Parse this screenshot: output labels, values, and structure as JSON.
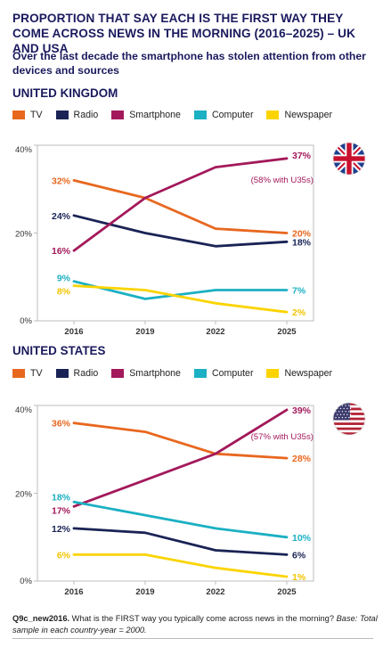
{
  "title": "PROPORTION THAT SAY EACH IS THE FIRST WAY THEY COME ACROSS NEWS IN THE MORNING (2016–2025) – UK AND USA",
  "subtitle": "Over the last decade the smartphone has stolen attention from other devices and sources",
  "colors": {
    "TV": "#e8671f",
    "Radio": "#1a2355",
    "Smartphone": "#a3195b",
    "Computer": "#1bb0c3",
    "Newspaper": "#fbd400"
  },
  "legend": [
    {
      "name": "TV",
      "color": "#e8671f"
    },
    {
      "name": "Radio",
      "color": "#1a2355"
    },
    {
      "name": "Smartphone",
      "color": "#a3195b"
    },
    {
      "name": "Computer",
      "color": "#1bb0c3"
    },
    {
      "name": "Newspaper",
      "color": "#fbd400"
    }
  ],
  "footnote": {
    "code": "Q9c_new2016.",
    "question": " What is the FIRST way you typically come across news in the morning? ",
    "base": "Base: Total sample in each country-year = 2000."
  },
  "chart_data": [
    {
      "type": "line",
      "region": "UNITED KINGDOM",
      "flag": "uk-flag-icon",
      "x": [
        "2016",
        "2019",
        "2022",
        "2025"
      ],
      "ylim": [
        0,
        40
      ],
      "yticks": [
        "0%",
        "20%",
        "40%"
      ],
      "grid": false,
      "legend_position": "top",
      "annotation": "(58% with U35s)",
      "series": [
        {
          "name": "TV",
          "values": [
            32,
            28,
            21,
            20
          ],
          "start_label": "32%",
          "end_label": "20%"
        },
        {
          "name": "Radio",
          "values": [
            24,
            20,
            17,
            18
          ],
          "start_label": "24%",
          "end_label": "18%"
        },
        {
          "name": "Smartphone",
          "values": [
            16,
            28,
            35,
            37
          ],
          "start_label": "16%",
          "end_label": "37%"
        },
        {
          "name": "Computer",
          "values": [
            9,
            5,
            7,
            7
          ],
          "start_label": "9%",
          "end_label": "7%"
        },
        {
          "name": "Newspaper",
          "values": [
            8,
            7,
            4,
            2
          ],
          "start_label": "8%",
          "end_label": "2%"
        }
      ]
    },
    {
      "type": "line",
      "region": "UNITED STATES",
      "flag": "us-flag-icon",
      "x": [
        "2016",
        "2019",
        "2022",
        "2025"
      ],
      "ylim": [
        0,
        40
      ],
      "yticks": [
        "0%",
        "20%",
        "40%"
      ],
      "grid": false,
      "legend_position": "top",
      "annotation": "(57% with U35s)",
      "series": [
        {
          "name": "TV",
          "values": [
            36,
            34,
            29,
            28
          ],
          "start_label": "36%",
          "end_label": "28%"
        },
        {
          "name": "Radio",
          "values": [
            12,
            11,
            7,
            6
          ],
          "start_label": "12%",
          "end_label": "6%"
        },
        {
          "name": "Smartphone",
          "values": [
            17,
            23,
            29,
            39
          ],
          "start_label": "17%",
          "end_label": "39%"
        },
        {
          "name": "Computer",
          "values": [
            18,
            15,
            12,
            10
          ],
          "start_label": "18%",
          "end_label": "10%"
        },
        {
          "name": "Newspaper",
          "values": [
            6,
            6,
            3,
            1
          ],
          "start_label": "6%",
          "end_label": "1%"
        }
      ]
    }
  ]
}
